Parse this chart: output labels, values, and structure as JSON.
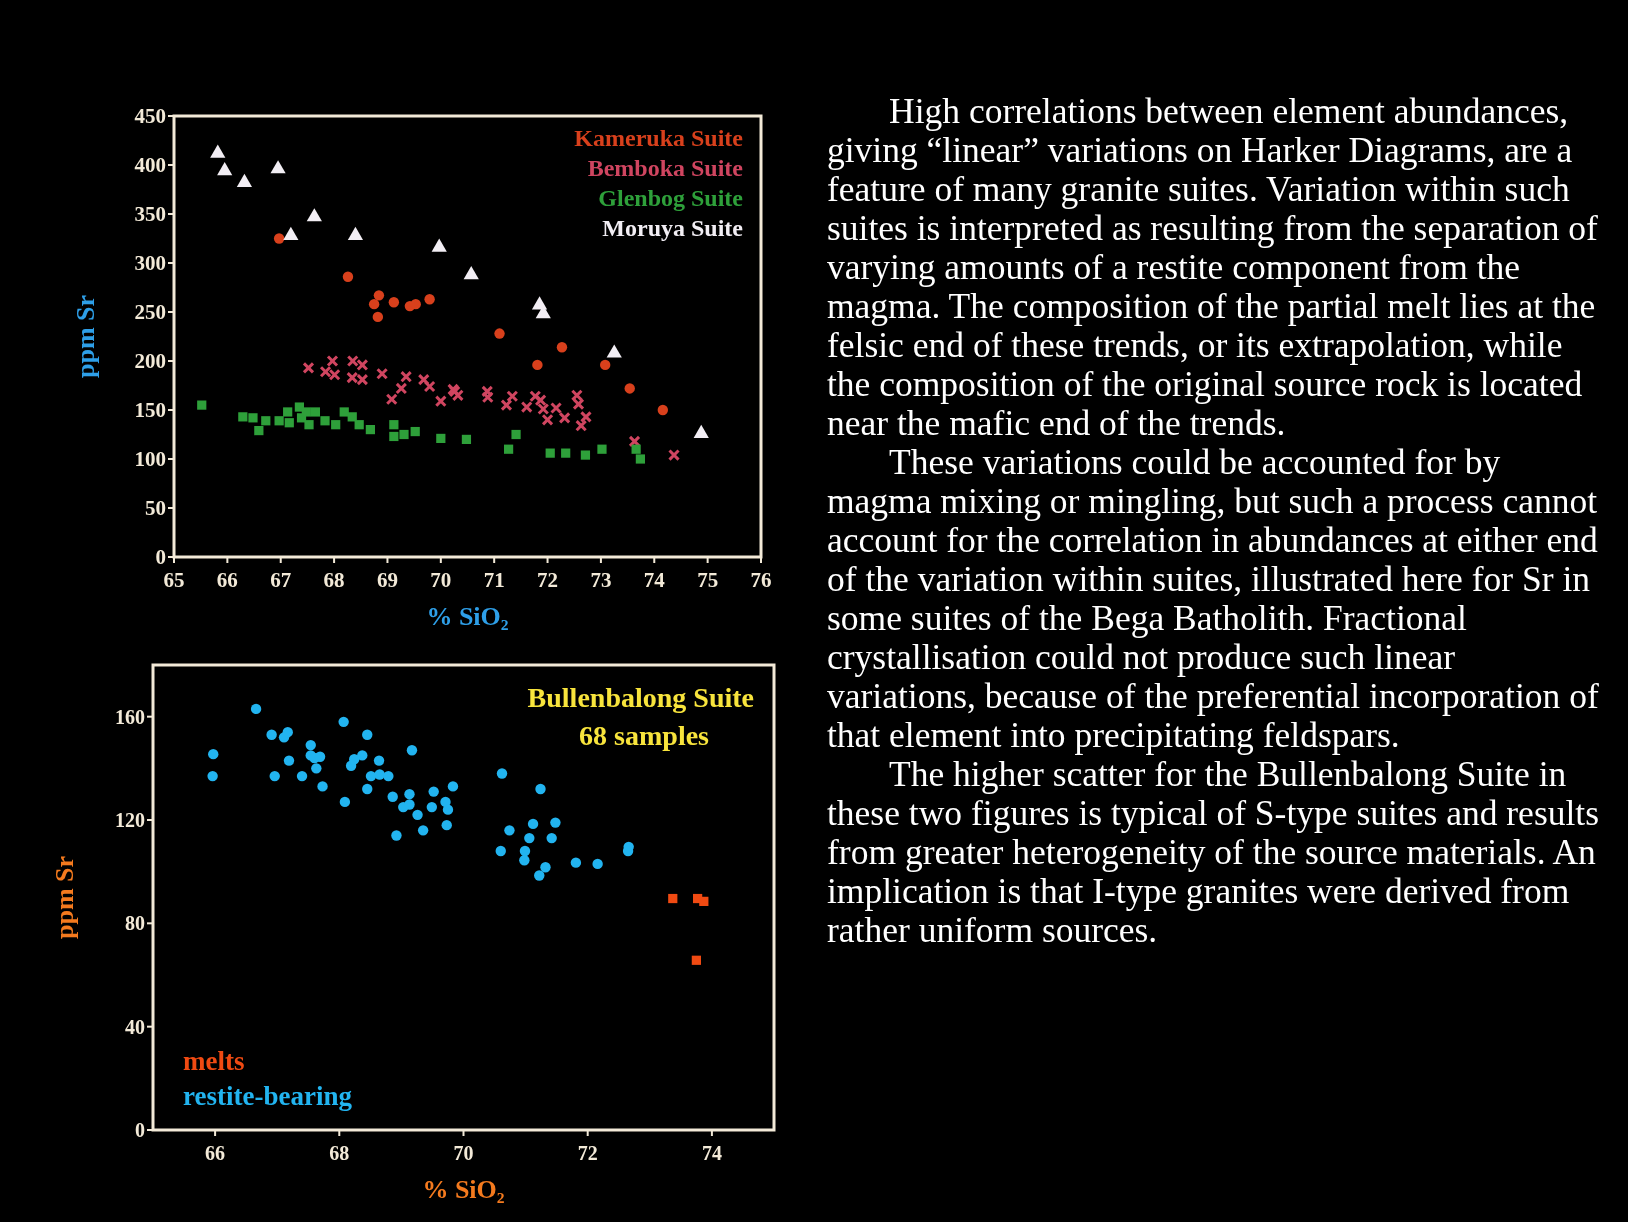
{
  "chart_data": [
    {
      "type": "scatter",
      "xlabel": "% SiO₂",
      "ylabel": "ppm Sr",
      "xlim": [
        65,
        76
      ],
      "xticks": [
        65,
        66,
        67,
        68,
        69,
        70,
        71,
        72,
        73,
        74,
        75,
        76
      ],
      "ylim": [
        0,
        450
      ],
      "yticks": [
        0,
        50,
        100,
        150,
        200,
        250,
        300,
        350,
        400,
        450
      ],
      "legend": "top right",
      "series": [
        {
          "name": "Kameruka Suite",
          "color": "#d8401c",
          "marker": "circle",
          "x": [
            66.97,
            68.26,
            68.84,
            68.75,
            68.82,
            69.12,
            69.42,
            69.53,
            69.79,
            71.1,
            72.27,
            71.81,
            73.08,
            73.54,
            74.16
          ],
          "values": [
            325,
            286,
            267,
            258,
            245,
            260,
            256,
            258,
            263,
            228,
            214,
            196,
            196,
            172,
            150
          ]
        },
        {
          "name": "Bemboka Suite",
          "color": "#d04560",
          "marker": "cross",
          "x": [
            67.52,
            67.97,
            67.84,
            68.01,
            68.35,
            68.53,
            68.34,
            68.53,
            68.9,
            69.08,
            69.26,
            69.35,
            69.68,
            69.79,
            70.0,
            70.23,
            70.32,
            70.26,
            70.87,
            70.88,
            71.23,
            71.34,
            71.61,
            71.77,
            71.87,
            71.92,
            72.0,
            72.16,
            72.32,
            72.55,
            72.58,
            72.63,
            72.72,
            73.63,
            74.37
          ],
          "values": [
            193,
            200,
            189,
            186,
            200,
            196,
            183,
            181,
            187,
            161,
            172,
            184,
            181,
            174,
            159,
            171,
            165,
            169,
            169,
            163,
            155,
            164,
            153,
            164,
            160,
            151,
            140,
            152,
            142,
            165,
            156,
            134,
            143,
            118,
            104
          ]
        },
        {
          "name": "Glenbog Suite",
          "color": "#2ea03a",
          "marker": "square",
          "x": [
            65.52,
            66.29,
            66.48,
            66.59,
            66.72,
            66.97,
            67.13,
            67.16,
            67.35,
            67.39,
            67.48,
            67.53,
            67.65,
            67.83,
            68.03,
            68.19,
            68.34,
            68.47,
            68.68,
            69.12,
            69.12,
            69.31,
            69.52,
            70.0,
            70.48,
            71.41,
            71.27,
            72.05,
            72.34,
            72.71,
            73.02,
            73.66,
            73.74
          ],
          "values": [
            155,
            143,
            142,
            129,
            139,
            139,
            148,
            137,
            153,
            142,
            148,
            135,
            148,
            139,
            135,
            148,
            143,
            135,
            130,
            135,
            123,
            125,
            128,
            121,
            120,
            125,
            110,
            106,
            106,
            104,
            110,
            110,
            100
          ]
        },
        {
          "name": "Moruya Suite",
          "color": "#f2eef4",
          "marker": "triangle",
          "x": [
            65.82,
            65.95,
            66.32,
            66.95,
            67.19,
            67.63,
            68.4,
            69.97,
            70.57,
            71.85,
            71.92,
            73.25,
            74.88
          ],
          "values": [
            412,
            394,
            382,
            396,
            328,
            347,
            328,
            316,
            288,
            257,
            248,
            208,
            126
          ]
        }
      ]
    },
    {
      "type": "scatter",
      "xlabel": "% SiO₂",
      "ylabel": "ppm Sr",
      "xlim": [
        65,
        75
      ],
      "xticks": [
        66,
        68,
        70,
        72,
        74
      ],
      "ylim": [
        0,
        180
      ],
      "yticks": [
        0,
        40,
        80,
        120,
        160
      ],
      "legend": "bottom left",
      "annotations": [
        "Bullenbalong Suite",
        "68 samples"
      ],
      "series": [
        {
          "name": "melts",
          "color": "#f04a12",
          "marker": "square",
          "x": [
            73.37,
            73.77,
            73.87,
            73.75
          ],
          "values": [
            89.6,
            89.6,
            88.5,
            65.7
          ]
        },
        {
          "name": "restite-bearing",
          "color": "#22b4f0",
          "marker": "circle",
          "x": [
            65.97,
            65.96,
            66.66,
            66.91,
            67.11,
            67.17,
            67.19,
            66.96,
            67.4,
            67.54,
            67.54,
            67.6,
            67.69,
            67.63,
            67.73,
            68.07,
            68.09,
            68.19,
            68.24,
            68.37,
            68.45,
            68.45,
            68.51,
            68.64,
            68.65,
            68.79,
            68.86,
            68.92,
            69.03,
            69.13,
            69.13,
            69.17,
            69.26,
            69.35,
            69.52,
            69.49,
            69.71,
            69.75,
            69.73,
            69.83,
            70.62,
            71.24,
            70.74,
            71.12,
            71.48,
            71.06,
            71.42,
            70.6,
            70.99,
            70.98,
            71.32,
            71.22,
            71.81,
            72.16,
            72.66,
            72.65
          ],
          "values": [
            145.5,
            137,
            163,
            153,
            152,
            154,
            143,
            137,
            137,
            149,
            145,
            144,
            144.5,
            140,
            133,
            158,
            127,
            141,
            143.5,
            145,
            153,
            132,
            137,
            143,
            137.6,
            137,
            129,
            114,
            125,
            130,
            126,
            147,
            122,
            116,
            131,
            125,
            127,
            124,
            118,
            133,
            138,
            132,
            116,
            118.5,
            119,
            113,
            113,
            108,
            108,
            104.4,
            101.7,
            98.5,
            103.5,
            103,
            109.6,
            108
          ]
        }
      ]
    },
    {
      "type": "other",
      "annotations": [
        "High correlations between element abundances, giving “linear” variations on Harker Diagrams, are a feature of many granite suites. Variation within such suites is interpreted as resulting from the separation of varying amounts of a restite component from the magma. The composition of the partial melt lies at the felsic end of these trends, or its extrapolation, while the composition of the original source rock is located near the mafic end of the trends.",
        "These variations could be accounted for by magma mixing or mingling, but such a process cannot account for the correlation in abundances at either end of the variation within suites, illustrated here for Sr in some suites of the Bega Batholith. Fractional crystallisation could not produce such linear variations, because of the preferential incorporation of that element into precipitating feldspars.",
        "The higher scatter for the Bullenbalong Suite in these two figures is typical of S-type suites and results from greater heterogeneity of the source materials. An implication is that I-type granites were derived from rather uniform sources."
      ]
    }
  ]
}
